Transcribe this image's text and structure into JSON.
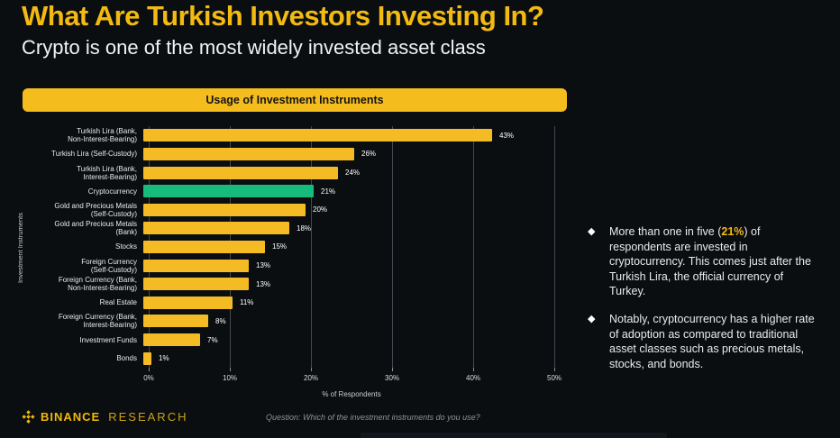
{
  "header": {
    "title": "What Are Turkish Investors Investing In?",
    "subtitle": "Crypto is one of the most widely invested asset class"
  },
  "chart_data": {
    "type": "bar",
    "orientation": "horizontal",
    "title": "Usage of Investment Instruments",
    "xlabel": "% of Respondents",
    "ylabel": "Investment Instruments",
    "xlim": [
      0,
      50
    ],
    "xticks": [
      0,
      10,
      20,
      30,
      40,
      50
    ],
    "xtick_suffix": "%",
    "grid": true,
    "legend": "none",
    "categories": [
      "Turkish Lira (Bank,\nNon-Interest-Bearing)",
      "Turkish Lira (Self-Custody)",
      "Turkish Lira (Bank,\nInterest-Bearing)",
      "Cryptocurrency",
      "Gold and Precious Metals\n(Self-Custody)",
      "Gold and Precious Metals\n(Bank)",
      "Stocks",
      "Foreign Currency\n(Self-Custody)",
      "Foreign Currency (Bank,\nNon-Interest-Bearing)",
      "Real Estate",
      "Foreign Currency (Bank,\nInterest-Bearing)",
      "Investment Funds",
      "Bonds"
    ],
    "values": [
      43,
      26,
      24,
      21,
      20,
      18,
      15,
      13,
      13,
      11,
      8,
      7,
      1
    ],
    "value_label_suffix": "%",
    "highlight_index": 3,
    "bar_color": "#F4BB25",
    "highlight_color": "#17BC7D",
    "grid_color": "#45484e"
  },
  "insights": [
    {
      "prefix": "More than one in five (",
      "highlight": "21%",
      "suffix": ") of respondents are invested in cryptocurrency. This comes just after the Turkish Lira, the official currency of Turkey."
    },
    {
      "prefix": "Notably, cryptocurrency has a higher rate of adoption as compared to traditional asset classes such as precious metals, stocks, and bonds.",
      "highlight": "",
      "suffix": ""
    }
  ],
  "footer": {
    "brand_primary": "BINANCE",
    "brand_secondary": "RESEARCH",
    "question": "Question: Which of the investment instruments do you use?"
  },
  "colors": {
    "background": "#0b0e11",
    "accent_yellow": "#F0B90B",
    "bar_yellow": "#F4BB25",
    "crypto_green": "#17BC7D",
    "text_primary": "#EDEDED"
  }
}
